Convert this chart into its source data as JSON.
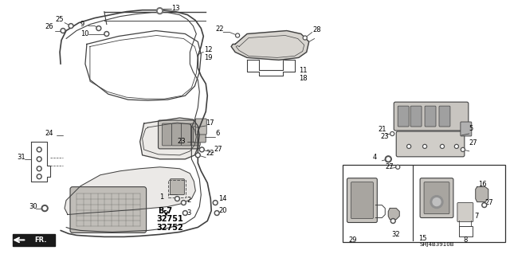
{
  "bg_color": "#ffffff",
  "line_color": "#404040",
  "text_color": "#000000",
  "diagram_code": "SHJ4B3910B",
  "figsize": [
    6.4,
    3.19
  ],
  "dpi": 100
}
